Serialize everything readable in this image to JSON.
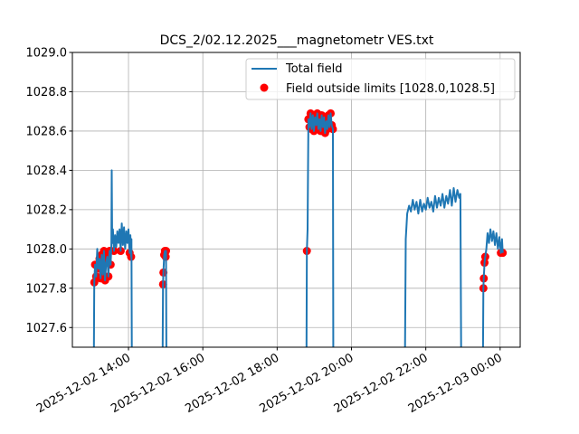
{
  "chart_data": {
    "type": "line",
    "title": "DCS_2/02.12.2025___magnetometr VES.txt",
    "xlabel": "",
    "ylabel": "",
    "x_units": "hours since 2025-12-02 00:00",
    "xlim": [
      12.49,
      24.54
    ],
    "ylim": [
      1027.5,
      1029.0
    ],
    "grid": true,
    "legend_position": "top-right",
    "limits": [
      1028.0,
      1028.5
    ],
    "y_ticks": [
      "1027.6",
      "1027.8",
      "1028.0",
      "1028.2",
      "1028.4",
      "1028.6",
      "1028.8",
      "1029.0"
    ],
    "y_tick_values": [
      1027.6,
      1027.8,
      1028.0,
      1028.2,
      1028.4,
      1028.6,
      1028.8,
      1029.0
    ],
    "x_ticks": [
      "2025-12-02 14:00",
      "2025-12-02 16:00",
      "2025-12-02 18:00",
      "2025-12-02 20:00",
      "2025-12-02 22:00",
      "2025-12-03 00:00"
    ],
    "x_tick_values": [
      14,
      16,
      18,
      20,
      22,
      24
    ],
    "legend": [
      "Total field",
      "Field outside limits [1028.0,1028.5]"
    ],
    "colors": {
      "line": "#1f77b4",
      "outliers": "#ff0000",
      "grid": "#b0b0b0"
    },
    "series": [
      {
        "name": "Total field",
        "points": [
          [
            13.07,
            1026.5
          ],
          [
            13.08,
            1027.83
          ],
          [
            13.1,
            1027.92
          ],
          [
            13.13,
            1027.86
          ],
          [
            13.16,
            1028.0
          ],
          [
            13.19,
            1027.9
          ],
          [
            13.22,
            1027.95
          ],
          [
            13.25,
            1027.85
          ],
          [
            13.28,
            1027.97
          ],
          [
            13.31,
            1027.87
          ],
          [
            13.34,
            1027.99
          ],
          [
            13.37,
            1027.84
          ],
          [
            13.4,
            1027.93
          ],
          [
            13.43,
            1027.96
          ],
          [
            13.46,
            1027.86
          ],
          [
            13.49,
            1027.99
          ],
          [
            13.52,
            1027.92
          ],
          [
            13.54,
            1028.02
          ],
          [
            13.55,
            1028.4
          ],
          [
            13.56,
            1028.03
          ],
          [
            13.58,
            1028.1
          ],
          [
            13.61,
            1027.99
          ],
          [
            13.64,
            1028.07
          ],
          [
            13.67,
            1028.01
          ],
          [
            13.7,
            1028.09
          ],
          [
            13.73,
            1028.03
          ],
          [
            13.76,
            1028.1
          ],
          [
            13.79,
            1027.99
          ],
          [
            13.82,
            1028.13
          ],
          [
            13.85,
            1028.02
          ],
          [
            13.88,
            1028.11
          ],
          [
            13.91,
            1028.0
          ],
          [
            13.94,
            1028.09
          ],
          [
            13.97,
            1028.03
          ],
          [
            14.0,
            1028.1
          ],
          [
            14.03,
            1027.98
          ],
          [
            14.05,
            1028.07
          ],
          [
            14.07,
            1027.96
          ],
          [
            14.08,
            1028.05
          ],
          [
            14.09,
            1026.5
          ],
          [
            14.92,
            1026.5
          ],
          [
            14.93,
            1027.82
          ],
          [
            14.94,
            1027.88
          ],
          [
            14.96,
            1027.97
          ],
          [
            14.98,
            1027.99
          ],
          [
            15.0,
            1027.96
          ],
          [
            15.01,
            1027.99
          ],
          [
            15.02,
            1026.5
          ],
          [
            18.79,
            1026.5
          ],
          [
            18.8,
            1027.99
          ],
          [
            18.82,
            1028.1
          ],
          [
            18.84,
            1028.66
          ],
          [
            18.87,
            1028.62
          ],
          [
            18.9,
            1028.69
          ],
          [
            18.93,
            1028.61
          ],
          [
            18.96,
            1028.68
          ],
          [
            18.99,
            1028.6
          ],
          [
            19.02,
            1028.67
          ],
          [
            19.05,
            1028.63
          ],
          [
            19.08,
            1028.69
          ],
          [
            19.11,
            1028.61
          ],
          [
            19.14,
            1028.66
          ],
          [
            19.17,
            1028.6
          ],
          [
            19.2,
            1028.68
          ],
          [
            19.23,
            1028.62
          ],
          [
            19.26,
            1028.67
          ],
          [
            19.29,
            1028.59
          ],
          [
            19.32,
            1028.65
          ],
          [
            19.35,
            1028.61
          ],
          [
            19.38,
            1028.68
          ],
          [
            19.41,
            1028.62
          ],
          [
            19.44,
            1028.69
          ],
          [
            19.47,
            1028.63
          ],
          [
            19.5,
            1028.61
          ],
          [
            19.51,
            1026.5
          ],
          [
            21.44,
            1026.5
          ],
          [
            21.46,
            1028.05
          ],
          [
            21.5,
            1028.18
          ],
          [
            21.55,
            1028.22
          ],
          [
            21.6,
            1028.19
          ],
          [
            21.65,
            1028.25
          ],
          [
            21.7,
            1028.2
          ],
          [
            21.75,
            1028.24
          ],
          [
            21.8,
            1028.18
          ],
          [
            21.85,
            1028.25
          ],
          [
            21.9,
            1028.19
          ],
          [
            21.95,
            1028.23
          ],
          [
            22.0,
            1028.2
          ],
          [
            22.05,
            1028.26
          ],
          [
            22.1,
            1028.21
          ],
          [
            22.15,
            1028.24
          ],
          [
            22.2,
            1028.19
          ],
          [
            22.25,
            1028.27
          ],
          [
            22.3,
            1028.21
          ],
          [
            22.35,
            1028.26
          ],
          [
            22.4,
            1028.22
          ],
          [
            22.45,
            1028.28
          ],
          [
            22.5,
            1028.21
          ],
          [
            22.55,
            1028.27
          ],
          [
            22.6,
            1028.23
          ],
          [
            22.65,
            1028.3
          ],
          [
            22.7,
            1028.22
          ],
          [
            22.75,
            1028.31
          ],
          [
            22.8,
            1028.24
          ],
          [
            22.85,
            1028.3
          ],
          [
            22.9,
            1028.26
          ],
          [
            22.93,
            1028.28
          ],
          [
            22.95,
            1026.5
          ],
          [
            23.54,
            1026.5
          ],
          [
            23.55,
            1027.8
          ],
          [
            23.56,
            1027.85
          ],
          [
            23.58,
            1027.93
          ],
          [
            23.6,
            1027.96
          ],
          [
            23.63,
            1028.0
          ],
          [
            23.66,
            1028.08
          ],
          [
            23.7,
            1028.03
          ],
          [
            23.74,
            1028.1
          ],
          [
            23.78,
            1028.04
          ],
          [
            23.82,
            1028.09
          ],
          [
            23.86,
            1028.02
          ],
          [
            23.9,
            1028.08
          ],
          [
            23.94,
            1028.0
          ],
          [
            23.98,
            1028.06
          ],
          [
            24.02,
            1027.98
          ],
          [
            24.05,
            1028.05
          ],
          [
            24.07,
            1027.98
          ]
        ]
      }
    ]
  }
}
